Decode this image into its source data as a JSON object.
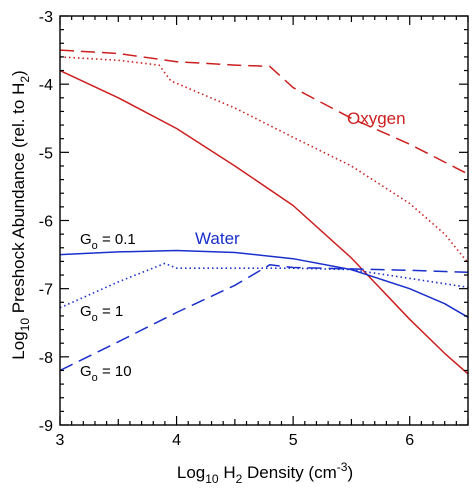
{
  "chart_data": {
    "type": "line",
    "xlabel": "Log10 H2 Density (cm-3)",
    "ylabel": "Log10 Preshock Abundance (rel. to H2)",
    "xlim": [
      3,
      6.5
    ],
    "ylim": [
      -9,
      -3
    ],
    "x_ticks": [
      "3",
      "4",
      "5",
      "6"
    ],
    "y_ticks": [
      "-3",
      "-4",
      "-5",
      "-6",
      "-7",
      "-8",
      "-9"
    ],
    "grid": false,
    "colors": {
      "oxygen": "#cc1f1f",
      "water": "#1a2fcc"
    },
    "labels": {
      "oxygen": "Oxygen",
      "water": "Water",
      "g01": "G",
      "g01_sub": "o",
      "g01_val": " = 0.1",
      "g1": "G",
      "g1_sub": "o",
      "g1_val": " = 1",
      "g10": "G",
      "g10_sub": "o",
      "g10_val": " = 10"
    },
    "series": [
      {
        "species": "oxygen",
        "G0": "0.1",
        "dash": "dashed",
        "x": [
          3.0,
          3.5,
          4.0,
          4.5,
          4.8,
          5.0,
          5.5,
          6.0,
          6.5
        ],
        "y": [
          -3.5,
          -3.55,
          -3.67,
          -3.72,
          -3.74,
          -4.05,
          -4.5,
          -4.88,
          -5.32
        ]
      },
      {
        "species": "oxygen",
        "G0": "1",
        "dash": "dotted",
        "x": [
          3.0,
          3.5,
          3.85,
          3.95,
          4.5,
          5.0,
          5.5,
          6.0,
          6.3,
          6.5
        ],
        "y": [
          -3.6,
          -3.65,
          -3.72,
          -3.95,
          -4.35,
          -4.78,
          -5.2,
          -5.75,
          -6.2,
          -6.62
        ]
      },
      {
        "species": "oxygen",
        "G0": "10",
        "dash": "solid",
        "x": [
          3.0,
          3.5,
          4.0,
          4.5,
          5.0,
          5.5,
          6.0,
          6.3,
          6.5
        ],
        "y": [
          -3.8,
          -4.2,
          -4.65,
          -5.2,
          -5.78,
          -6.55,
          -7.45,
          -7.95,
          -8.25
        ]
      },
      {
        "species": "water",
        "G0": "0.1",
        "dash": "solid",
        "x": [
          3.0,
          3.5,
          4.0,
          4.5,
          5.0,
          5.5,
          6.0,
          6.3,
          6.5
        ],
        "y": [
          -6.5,
          -6.46,
          -6.44,
          -6.47,
          -6.56,
          -6.72,
          -7.0,
          -7.22,
          -7.42
        ]
      },
      {
        "species": "water",
        "G0": "1",
        "dash": "dotted",
        "x": [
          3.0,
          3.5,
          3.9,
          4.0,
          4.5,
          5.0,
          5.5,
          6.0,
          6.5
        ],
        "y": [
          -7.28,
          -6.9,
          -6.63,
          -6.7,
          -6.7,
          -6.7,
          -6.72,
          -6.85,
          -6.98
        ]
      },
      {
        "species": "water",
        "G0": "10",
        "dash": "dashed",
        "x": [
          3.0,
          3.5,
          4.0,
          4.5,
          4.8,
          5.0,
          5.5,
          6.0,
          6.5
        ],
        "y": [
          -8.2,
          -7.78,
          -7.35,
          -6.95,
          -6.65,
          -6.69,
          -6.71,
          -6.73,
          -6.76
        ]
      }
    ]
  }
}
